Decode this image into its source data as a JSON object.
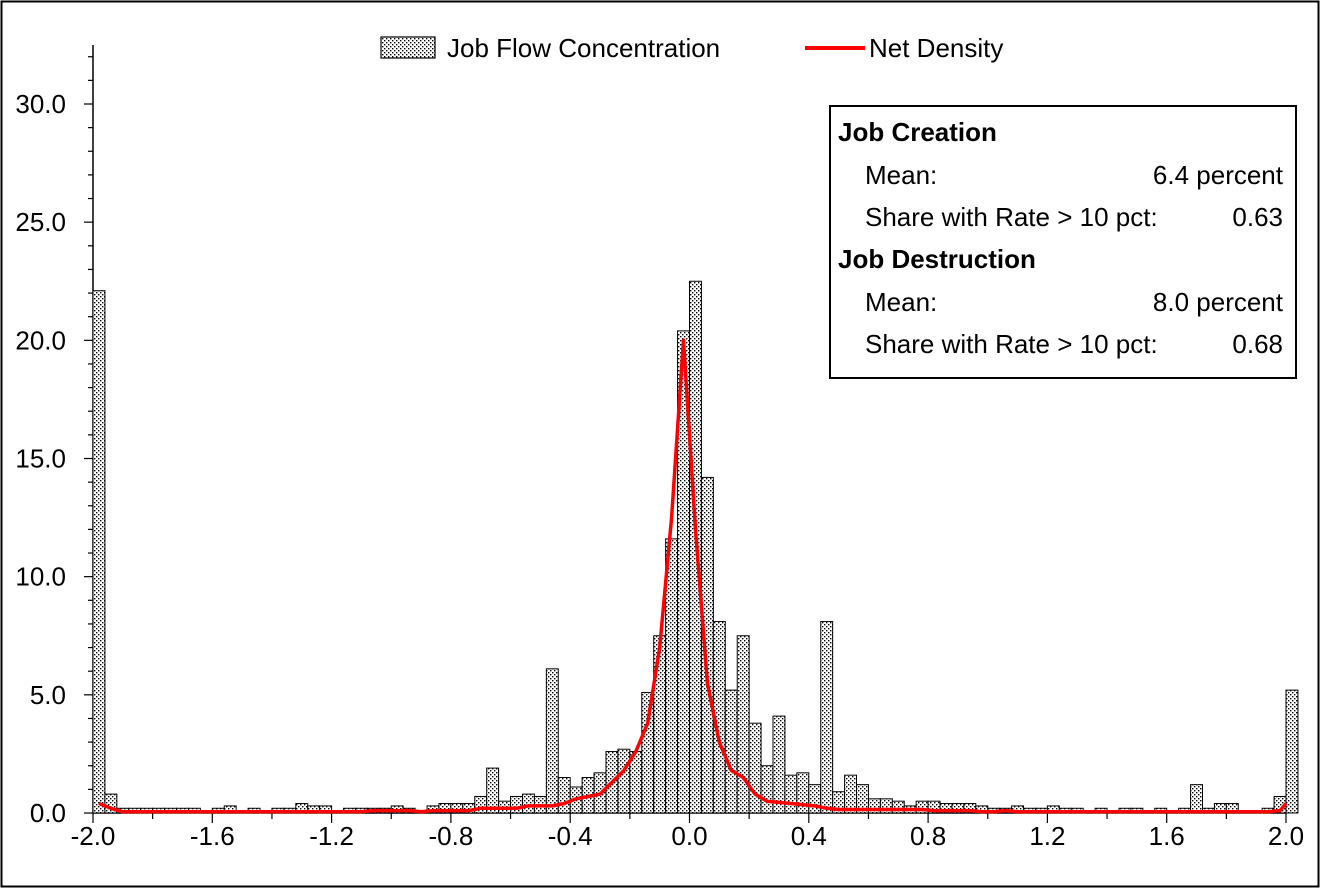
{
  "chart_data": {
    "type": "bar",
    "legend": {
      "placement": "top-center",
      "bar_label": "Job Flow Concentration",
      "line_label": "Net Density"
    },
    "ylim": [
      0,
      32
    ],
    "y_ticks": [
      "0.0",
      "5.0",
      "10.0",
      "15.0",
      "20.0",
      "25.0",
      "30.0"
    ],
    "y_tick_values": [
      0,
      5,
      10,
      15,
      20,
      25,
      30
    ],
    "x_ticks": [
      "-2.0",
      "-1.6",
      "-1.2",
      "-0.8",
      "-0.4",
      "0.0",
      "0.4",
      "0.8",
      "1.2",
      "1.6",
      "2.0"
    ],
    "x_tick_values": [
      -2.0,
      -1.6,
      -1.2,
      -0.8,
      -0.4,
      0.0,
      0.4,
      0.8,
      1.2,
      1.6,
      2.0
    ],
    "xlim": [
      -2.0,
      2.0
    ],
    "bar_width": 0.04,
    "bars_x": [
      -2.0,
      -1.96,
      -1.92,
      -1.88,
      -1.84,
      -1.8,
      -1.76,
      -1.72,
      -1.68,
      -1.64,
      -1.6,
      -1.56,
      -1.52,
      -1.48,
      -1.44,
      -1.4,
      -1.36,
      -1.32,
      -1.28,
      -1.24,
      -1.2,
      -1.16,
      -1.12,
      -1.08,
      -1.04,
      -1.0,
      -0.96,
      -0.92,
      -0.88,
      -0.84,
      -0.8,
      -0.76,
      -0.72,
      -0.68,
      -0.64,
      -0.6,
      -0.56,
      -0.52,
      -0.48,
      -0.44,
      -0.4,
      -0.36,
      -0.32,
      -0.28,
      -0.24,
      -0.2,
      -0.16,
      -0.12,
      -0.08,
      -0.04,
      0.0,
      0.04,
      0.08,
      0.12,
      0.16,
      0.2,
      0.24,
      0.28,
      0.32,
      0.36,
      0.4,
      0.44,
      0.48,
      0.52,
      0.56,
      0.6,
      0.64,
      0.68,
      0.72,
      0.76,
      0.8,
      0.84,
      0.88,
      0.92,
      0.96,
      1.0,
      1.04,
      1.08,
      1.12,
      1.16,
      1.2,
      1.24,
      1.28,
      1.32,
      1.36,
      1.4,
      1.44,
      1.48,
      1.52,
      1.56,
      1.6,
      1.64,
      1.68,
      1.72,
      1.76,
      1.8,
      1.84,
      1.88,
      1.92,
      1.96,
      2.0
    ],
    "bars_values": [
      22.1,
      0.8,
      0.2,
      0.2,
      0.2,
      0.2,
      0.2,
      0.2,
      0.2,
      0.1,
      0.2,
      0.3,
      0.1,
      0.2,
      0.1,
      0.2,
      0.2,
      0.4,
      0.3,
      0.3,
      0.1,
      0.2,
      0.2,
      0.2,
      0.2,
      0.3,
      0.2,
      0.1,
      0.3,
      0.4,
      0.4,
      0.4,
      0.7,
      1.9,
      0.5,
      0.7,
      0.8,
      0.7,
      6.1,
      1.5,
      1.1,
      1.5,
      1.7,
      2.6,
      2.7,
      2.6,
      5.1,
      7.5,
      11.6,
      20.4,
      22.5,
      14.2,
      8.1,
      5.2,
      7.5,
      3.8,
      2.0,
      4.1,
      1.6,
      1.7,
      1.2,
      8.1,
      0.9,
      1.6,
      1.2,
      0.6,
      0.6,
      0.5,
      0.3,
      0.5,
      0.5,
      0.4,
      0.4,
      0.4,
      0.3,
      0.2,
      0.2,
      0.3,
      0.2,
      0.2,
      0.3,
      0.2,
      0.2,
      0.1,
      0.2,
      0.1,
      0.2,
      0.2,
      0.1,
      0.2,
      0.1,
      0.2,
      1.2,
      0.2,
      0.4,
      0.4,
      0.1,
      0.1,
      0.2,
      0.7,
      5.2
    ],
    "line_x": [
      -2.0,
      -1.96,
      -1.92,
      -1.88,
      -1.84,
      -1.8,
      -1.76,
      -1.72,
      -1.68,
      -1.64,
      -1.6,
      -1.56,
      -1.52,
      -1.48,
      -1.44,
      -1.4,
      -1.36,
      -1.32,
      -1.28,
      -1.24,
      -1.2,
      -1.16,
      -1.12,
      -1.08,
      -1.04,
      -1.0,
      -0.96,
      -0.92,
      -0.88,
      -0.84,
      -0.8,
      -0.76,
      -0.72,
      -0.68,
      -0.64,
      -0.6,
      -0.56,
      -0.52,
      -0.48,
      -0.44,
      -0.4,
      -0.36,
      -0.32,
      -0.28,
      -0.24,
      -0.2,
      -0.16,
      -0.12,
      -0.08,
      -0.04,
      0.0,
      0.04,
      0.08,
      0.12,
      0.16,
      0.2,
      0.24,
      0.28,
      0.32,
      0.36,
      0.4,
      0.44,
      0.48,
      0.52,
      0.56,
      0.6,
      0.64,
      0.68,
      0.72,
      0.76,
      0.8,
      0.84,
      0.88,
      0.92,
      0.96,
      1.0,
      1.04,
      1.08,
      1.12,
      1.16,
      1.2,
      1.24,
      1.28,
      1.32,
      1.36,
      1.4,
      1.44,
      1.48,
      1.52,
      1.56,
      1.6,
      1.64,
      1.68,
      1.72,
      1.76,
      1.8,
      1.84,
      1.88,
      1.92,
      1.96,
      2.0
    ],
    "line_values": [
      0.4,
      0.2,
      0.05,
      0.05,
      0.05,
      0.05,
      0.05,
      0.05,
      0.05,
      0.05,
      0.05,
      0.05,
      0.05,
      0.05,
      0.05,
      0.05,
      0.05,
      0.05,
      0.05,
      0.05,
      0.05,
      0.05,
      0.05,
      0.1,
      0.1,
      0.1,
      0.1,
      0.05,
      0.1,
      0.1,
      0.1,
      0.1,
      0.2,
      0.2,
      0.2,
      0.2,
      0.3,
      0.3,
      0.3,
      0.4,
      0.6,
      0.7,
      0.8,
      1.3,
      1.8,
      2.6,
      3.8,
      7.0,
      12.5,
      20.0,
      12.0,
      5.5,
      3.0,
      1.8,
      1.5,
      0.8,
      0.5,
      0.45,
      0.4,
      0.35,
      0.3,
      0.2,
      0.15,
      0.15,
      0.15,
      0.15,
      0.15,
      0.15,
      0.15,
      0.15,
      0.1,
      0.1,
      0.1,
      0.1,
      0.05,
      0.05,
      0.1,
      0.05,
      0.05,
      0.05,
      0.05,
      0.05,
      0.05,
      0.05,
      0.05,
      0.05,
      0.05,
      0.05,
      0.05,
      0.05,
      0.05,
      0.05,
      0.05,
      0.05,
      0.05,
      0.05,
      0.05,
      0.05,
      0.05,
      0.1,
      0.4
    ],
    "colors": {
      "line": "#ff0000",
      "bar_fill": "#ffffff",
      "bar_dots": "#000000",
      "bar_stroke": "#000000"
    },
    "stats_box": {
      "placement": "top-right",
      "creation_title": "Job Creation",
      "creation_mean_label": "Mean:",
      "creation_mean_value": "6.4 percent",
      "creation_share_label": "Share with Rate > 10 pct:",
      "creation_share_value": "0.63",
      "destruction_title": "Job Destruction",
      "destruction_mean_label": "Mean:",
      "destruction_mean_value": "8.0 percent",
      "destruction_share_label": "Share with Rate > 10 pct:",
      "destruction_share_value": "0.68"
    }
  }
}
